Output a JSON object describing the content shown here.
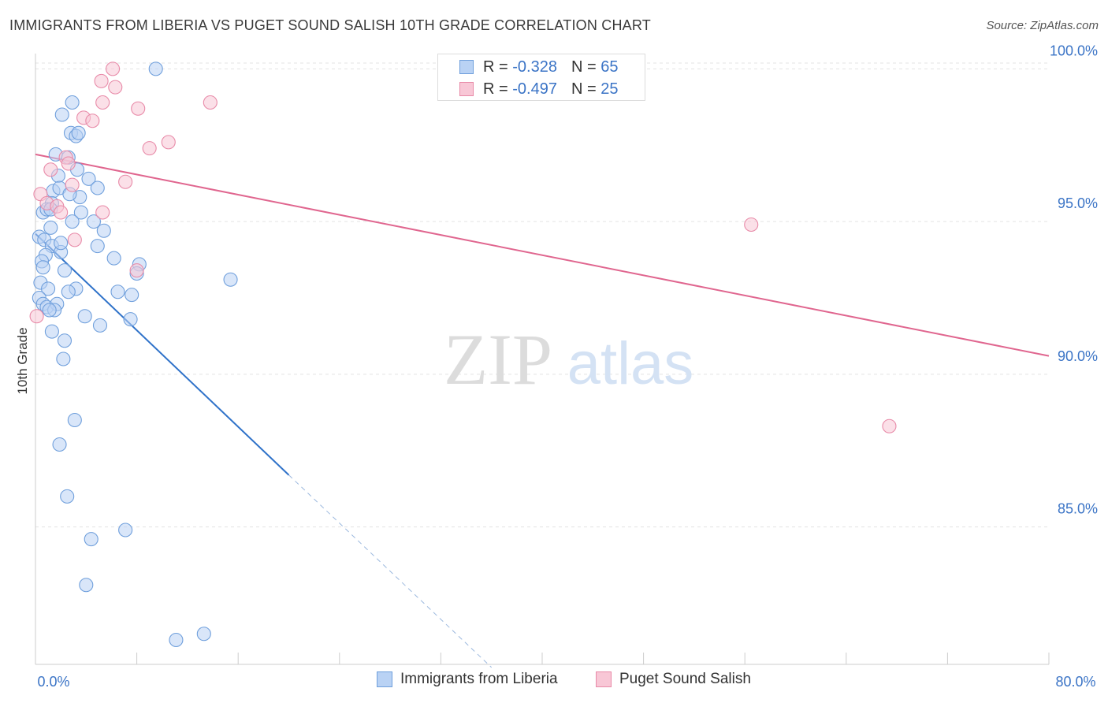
{
  "title": "IMMIGRANTS FROM LIBERIA VS PUGET SOUND SALISH 10TH GRADE CORRELATION CHART",
  "source": "Source: ZipAtlas.com",
  "watermark": {
    "zip": "ZIP",
    "atlas": "atlas"
  },
  "legend": [
    {
      "r_label": "R =",
      "r_value": "-0.328",
      "n_label": "N =",
      "n_value": "65"
    },
    {
      "r_label": "R =",
      "r_value": "-0.497",
      "n_label": "N =",
      "n_value": "25"
    }
  ],
  "colors": {
    "blue_fill": "#b9d2f4",
    "blue_stroke": "#6f9fdc",
    "blue_line": "#2f72c9",
    "pink_fill": "#f8c7d6",
    "pink_stroke": "#e88aa8",
    "pink_line": "#e0668f",
    "tick_label": "#3b74c6",
    "grid": "#e3e3e3"
  },
  "chart_data": {
    "type": "scatter",
    "title": "IMMIGRANTS FROM LIBERIA VS PUGET SOUND SALISH 10TH GRADE CORRELATION CHART",
    "xlabel": "",
    "ylabel": "10th Grade",
    "xlim": [
      0,
      80
    ],
    "ylim": [
      80.5,
      100.5
    ],
    "x_tick_labels": [
      "0.0%",
      "80.0%"
    ],
    "y_ticks": [
      85,
      90,
      95,
      100
    ],
    "y_tick_labels": [
      "85.0%",
      "90.0%",
      "95.0%",
      "100.0%"
    ],
    "grid": true,
    "legend_position": "bottom",
    "series": [
      {
        "name": "Immigrants from Liberia",
        "color": "#6f9fdc",
        "points": [
          [
            9.5,
            100.0
          ],
          [
            2.9,
            98.9
          ],
          [
            2.1,
            98.5
          ],
          [
            2.8,
            97.9
          ],
          [
            3.2,
            97.8
          ],
          [
            3.4,
            97.9
          ],
          [
            1.6,
            97.2
          ],
          [
            2.6,
            97.1
          ],
          [
            3.3,
            96.7
          ],
          [
            1.8,
            96.5
          ],
          [
            4.2,
            96.4
          ],
          [
            4.9,
            96.1
          ],
          [
            1.4,
            96.0
          ],
          [
            1.9,
            96.1
          ],
          [
            3.5,
            95.8
          ],
          [
            1.3,
            95.6
          ],
          [
            0.6,
            95.3
          ],
          [
            0.9,
            95.4
          ],
          [
            1.2,
            95.4
          ],
          [
            3.6,
            95.3
          ],
          [
            2.9,
            95.0
          ],
          [
            4.6,
            95.0
          ],
          [
            1.2,
            94.8
          ],
          [
            5.4,
            94.7
          ],
          [
            0.3,
            94.5
          ],
          [
            0.7,
            94.4
          ],
          [
            1.3,
            94.2
          ],
          [
            4.9,
            94.2
          ],
          [
            2.0,
            94.0
          ],
          [
            0.8,
            93.9
          ],
          [
            6.2,
            93.8
          ],
          [
            8.2,
            93.6
          ],
          [
            0.5,
            93.7
          ],
          [
            0.6,
            93.5
          ],
          [
            2.3,
            93.4
          ],
          [
            8.0,
            93.3
          ],
          [
            15.4,
            93.1
          ],
          [
            0.4,
            93.0
          ],
          [
            1.0,
            92.8
          ],
          [
            3.2,
            92.8
          ],
          [
            2.6,
            92.7
          ],
          [
            6.5,
            92.7
          ],
          [
            7.6,
            92.6
          ],
          [
            0.3,
            92.5
          ],
          [
            0.6,
            92.3
          ],
          [
            0.9,
            92.2
          ],
          [
            1.7,
            92.3
          ],
          [
            1.5,
            92.1
          ],
          [
            3.9,
            91.9
          ],
          [
            7.5,
            91.8
          ],
          [
            5.1,
            91.6
          ],
          [
            1.3,
            91.4
          ],
          [
            2.3,
            91.1
          ],
          [
            2.2,
            90.5
          ],
          [
            3.1,
            88.5
          ],
          [
            1.9,
            87.7
          ],
          [
            2.5,
            86.0
          ],
          [
            7.1,
            84.9
          ],
          [
            4.4,
            84.6
          ],
          [
            4.0,
            83.1
          ],
          [
            11.1,
            81.3
          ],
          [
            13.3,
            81.5
          ],
          [
            2.0,
            94.3
          ],
          [
            2.7,
            95.9
          ],
          [
            1.1,
            92.1
          ]
        ]
      },
      {
        "name": "Puget Sound Salish",
        "color": "#e88aa8",
        "points": [
          [
            6.1,
            100.0
          ],
          [
            5.2,
            99.6
          ],
          [
            6.3,
            99.4
          ],
          [
            5.3,
            98.9
          ],
          [
            13.8,
            98.9
          ],
          [
            8.1,
            98.7
          ],
          [
            3.8,
            98.4
          ],
          [
            4.5,
            98.3
          ],
          [
            10.5,
            97.6
          ],
          [
            9.0,
            97.4
          ],
          [
            2.4,
            97.1
          ],
          [
            2.6,
            96.9
          ],
          [
            1.2,
            96.7
          ],
          [
            7.1,
            96.3
          ],
          [
            2.9,
            96.2
          ],
          [
            0.4,
            95.9
          ],
          [
            0.9,
            95.6
          ],
          [
            1.7,
            95.5
          ],
          [
            2.0,
            95.3
          ],
          [
            5.3,
            95.3
          ],
          [
            3.1,
            94.4
          ],
          [
            8.0,
            93.4
          ],
          [
            56.5,
            94.9
          ],
          [
            67.4,
            88.3
          ],
          [
            0.1,
            91.9
          ]
        ]
      }
    ],
    "trendlines": [
      {
        "series": "Immigrants from Liberia",
        "x": [
          0,
          20
        ],
        "y": [
          94.6,
          86.7
        ],
        "dashed_extension_to": [
          36,
          80.4
        ]
      },
      {
        "series": "Puget Sound Salish",
        "x": [
          0,
          80
        ],
        "y": [
          97.2,
          90.6
        ]
      }
    ]
  }
}
